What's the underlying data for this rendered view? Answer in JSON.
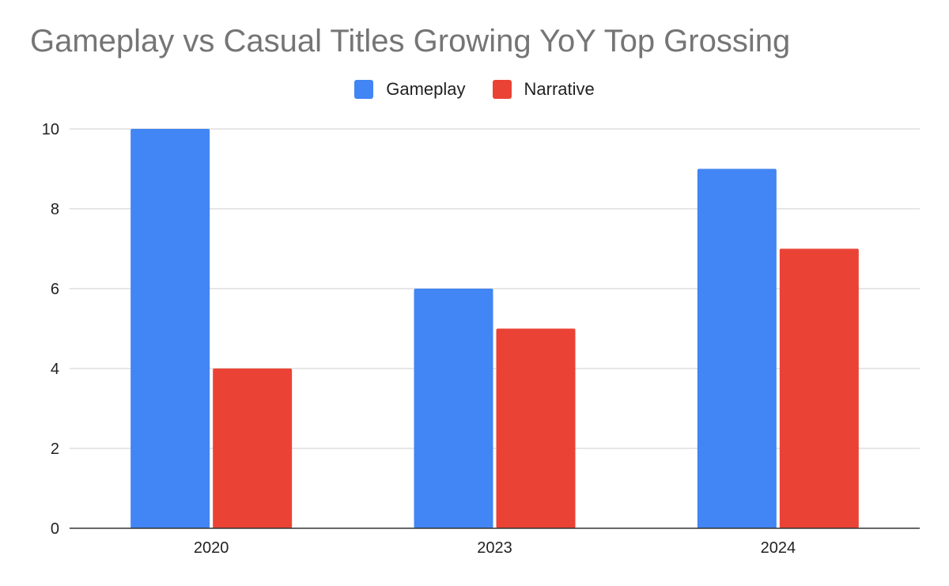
{
  "chart_data": {
    "type": "bar",
    "title": "Gameplay vs Casual Titles Growing YoY Top Grossing",
    "categories": [
      "2020",
      "2023",
      "2024"
    ],
    "series": [
      {
        "name": "Gameplay",
        "values": [
          10,
          6,
          9
        ],
        "color": "#4285f4"
      },
      {
        "name": "Narrative",
        "values": [
          4,
          5,
          7
        ],
        "color": "#ea4335"
      }
    ],
    "ylim": [
      0,
      10
    ],
    "yticks": [
      "0",
      "2",
      "4",
      "6",
      "8",
      "10"
    ],
    "grid": true,
    "legend_position": "top"
  }
}
